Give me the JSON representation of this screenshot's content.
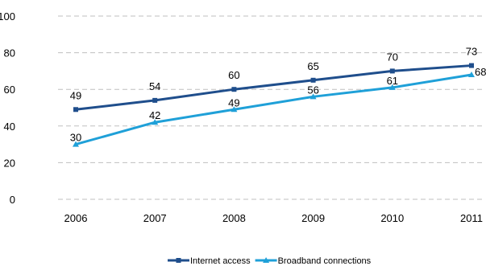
{
  "chart_data": {
    "type": "line",
    "title": "",
    "xlabel": "",
    "ylabel": "",
    "categories": [
      "2006",
      "2007",
      "2008",
      "2009",
      "2010",
      "2011"
    ],
    "ylim": [
      0,
      100
    ],
    "yticks": [
      "0",
      "20",
      "40",
      "60",
      "80",
      "100"
    ],
    "grid": true,
    "legend_position": "bottom",
    "series": [
      {
        "name": "Internet access",
        "values": [
          49,
          54,
          60,
          65,
          70,
          73
        ],
        "color": "#1f4e8c",
        "marker": "square"
      },
      {
        "name": "Broadband connections",
        "values": [
          30,
          42,
          49,
          56,
          61,
          68
        ],
        "color": "#1fa0d8",
        "marker": "triangle"
      }
    ]
  }
}
